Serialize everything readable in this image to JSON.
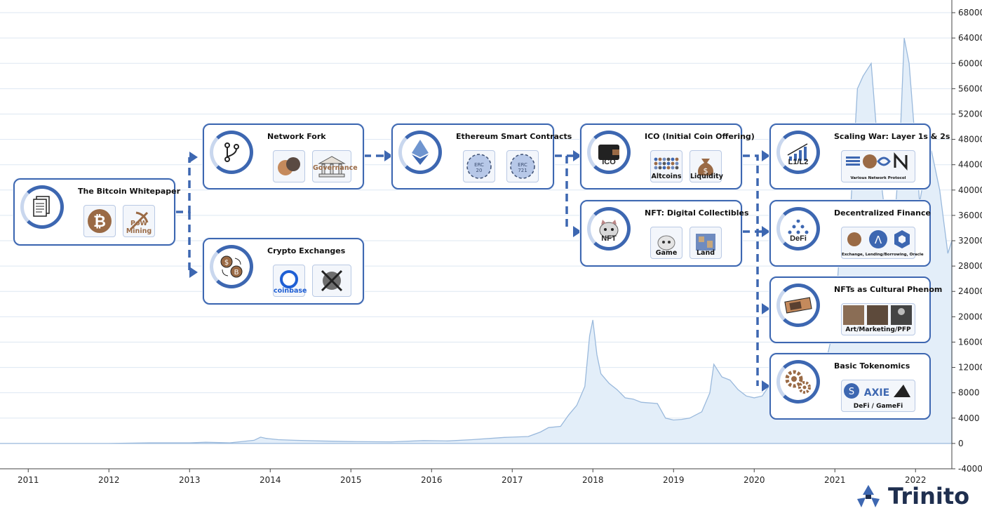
{
  "chart_data": {
    "type": "area",
    "title": "",
    "xlabel": "",
    "ylabel": "",
    "x_ticks": [
      "2011",
      "2012",
      "2013",
      "2014",
      "2015",
      "2016",
      "2017",
      "2018",
      "2019",
      "2020",
      "2021",
      "2022"
    ],
    "y_ticks": [
      -4000,
      0,
      4000,
      8000,
      12000,
      16000,
      20000,
      24000,
      28000,
      32000,
      36000,
      40000,
      44000,
      48000,
      52000,
      56000,
      60000,
      64000,
      68000
    ],
    "ylim": [
      -4000,
      70000
    ],
    "xlim": [
      2010.65,
      2022.45
    ],
    "y_axis_position": "right",
    "grid": "horizontal",
    "series": [
      {
        "x": [
          2010.65,
          2011.0,
          2011.5,
          2012.0,
          2012.5,
          2013.0,
          2013.2,
          2013.5,
          2013.8,
          2013.88,
          2013.95,
          2014.1,
          2014.3,
          2014.6,
          2015.0,
          2015.5,
          2015.9,
          2016.2,
          2016.5,
          2016.9,
          2017.0,
          2017.2,
          2017.35,
          2017.45,
          2017.6,
          2017.7,
          2017.8,
          2017.9,
          2017.96,
          2018.0,
          2018.05,
          2018.1,
          2018.2,
          2018.3,
          2018.4,
          2018.5,
          2018.6,
          2018.8,
          2018.9,
          2019.0,
          2019.1,
          2019.2,
          2019.35,
          2019.45,
          2019.5,
          2019.6,
          2019.7,
          2019.8,
          2019.9,
          2020.0,
          2020.1,
          2020.18,
          2020.3,
          2020.45,
          2020.6,
          2020.7,
          2020.8,
          2020.9,
          2021.0,
          2021.05,
          2021.12,
          2021.2,
          2021.28,
          2021.35,
          2021.45,
          2021.55,
          2021.65,
          2021.72,
          2021.8,
          2021.86,
          2021.92,
          2022.0,
          2022.05,
          2022.12,
          2022.2,
          2022.3,
          2022.4,
          2022.45
        ],
        "y": [
          0,
          0,
          0,
          0,
          100,
          100,
          200,
          100,
          500,
          1000,
          800,
          600,
          500,
          400,
          300,
          250,
          450,
          400,
          600,
          950,
          1000,
          1100,
          1800,
          2500,
          2700,
          4500,
          6000,
          9000,
          17000,
          19500,
          14000,
          11000,
          9500,
          8500,
          7200,
          7000,
          6500,
          6300,
          4000,
          3700,
          3800,
          4000,
          5000,
          8000,
          12500,
          10500,
          10000,
          8500,
          7500,
          7200,
          7500,
          9000,
          6500,
          8000,
          9500,
          10500,
          11500,
          13500,
          19000,
          29000,
          34000,
          38000,
          56000,
          58000,
          60000,
          44000,
          33000,
          32000,
          45000,
          64000,
          60000,
          47000,
          38000,
          43000,
          46000,
          40000,
          30000,
          32000
        ]
      }
    ]
  },
  "cards": [
    {
      "id": "whitepaper",
      "title": "The Bitcoin Whitepaper",
      "ring_icon": "document-stack-icon",
      "subs": [
        {
          "icon": "bitcoin-icon",
          "label": ""
        },
        {
          "icon": "pickaxe-icon",
          "label": "PoW Mining"
        }
      ]
    },
    {
      "id": "fork",
      "title": "Network Fork",
      "ring_icon": "git-branch-icon",
      "subs": [
        {
          "icon": "coins-icon",
          "label": ""
        },
        {
          "icon": "building-icon",
          "label": "Governance"
        }
      ]
    },
    {
      "id": "exchanges",
      "title": "Crypto Exchanges",
      "ring_icon": "coin-swap-icon",
      "subs": [
        {
          "icon": "coinbase-logo-icon",
          "label": "coinbase"
        },
        {
          "icon": "crossed-out-icon",
          "label": ""
        }
      ]
    },
    {
      "id": "ethereum",
      "title": "Ethereum Smart Contracts",
      "ring_icon": "ethereum-icon",
      "subs": [
        {
          "icon": "erc20-token-icon",
          "label": "ERC\n20"
        },
        {
          "icon": "erc721-token-icon",
          "label": "ERC\n721"
        }
      ]
    },
    {
      "id": "ico",
      "title": "ICO (Initial Coin Offering)",
      "ring_icon": "wallet-icon",
      "ring_label": "ICO",
      "subs": [
        {
          "icon": "altcoin-grid-icon",
          "label": "Altcoins"
        },
        {
          "icon": "money-bag-icon",
          "label": "Liquidity"
        }
      ]
    },
    {
      "id": "nft",
      "title": "NFT: Digital Collectibles",
      "ring_icon": "cat-nft-icon",
      "ring_label": "NFT",
      "subs": [
        {
          "icon": "game-cat-icon",
          "label": "Game"
        },
        {
          "icon": "land-map-icon",
          "label": "Land"
        }
      ]
    },
    {
      "id": "scaling",
      "title": "Scaling War: Layer 1s & 2s",
      "ring_icon": "growth-chart-icon",
      "ring_label": "L1/L2",
      "wide_label": "Various Network Protocol",
      "wide_icon": "protocol-logos-icon"
    },
    {
      "id": "defi",
      "title": "Decentralized Finance",
      "ring_icon": "network-triangle-icon",
      "ring_label": "DeFi",
      "wide_label": "Exchange, Lending/Borrowing, Oracle",
      "wide_icon": "defi-logos-icon"
    },
    {
      "id": "culture",
      "title": "NFTs as Cultural Phenom",
      "ring_icon": "ticket-icon",
      "wide_label": "Art/Marketing/PFP",
      "wide_icon": "art-photos-icon"
    },
    {
      "id": "tokenomics",
      "title": "Basic Tokenomics",
      "ring_icon": "gears-icon",
      "wide_label": "DeFi / GameFi",
      "wide_icon": "gamefi-logos-icon"
    }
  ],
  "brand": {
    "name": "Trinito",
    "logo_icon": "trinito-logo-icon"
  },
  "colors": {
    "accent": "#3d67b1",
    "area_fill": "#e3eef9",
    "area_line": "#9ab9dc",
    "grid": "#dde7f2",
    "text": "#222222"
  }
}
